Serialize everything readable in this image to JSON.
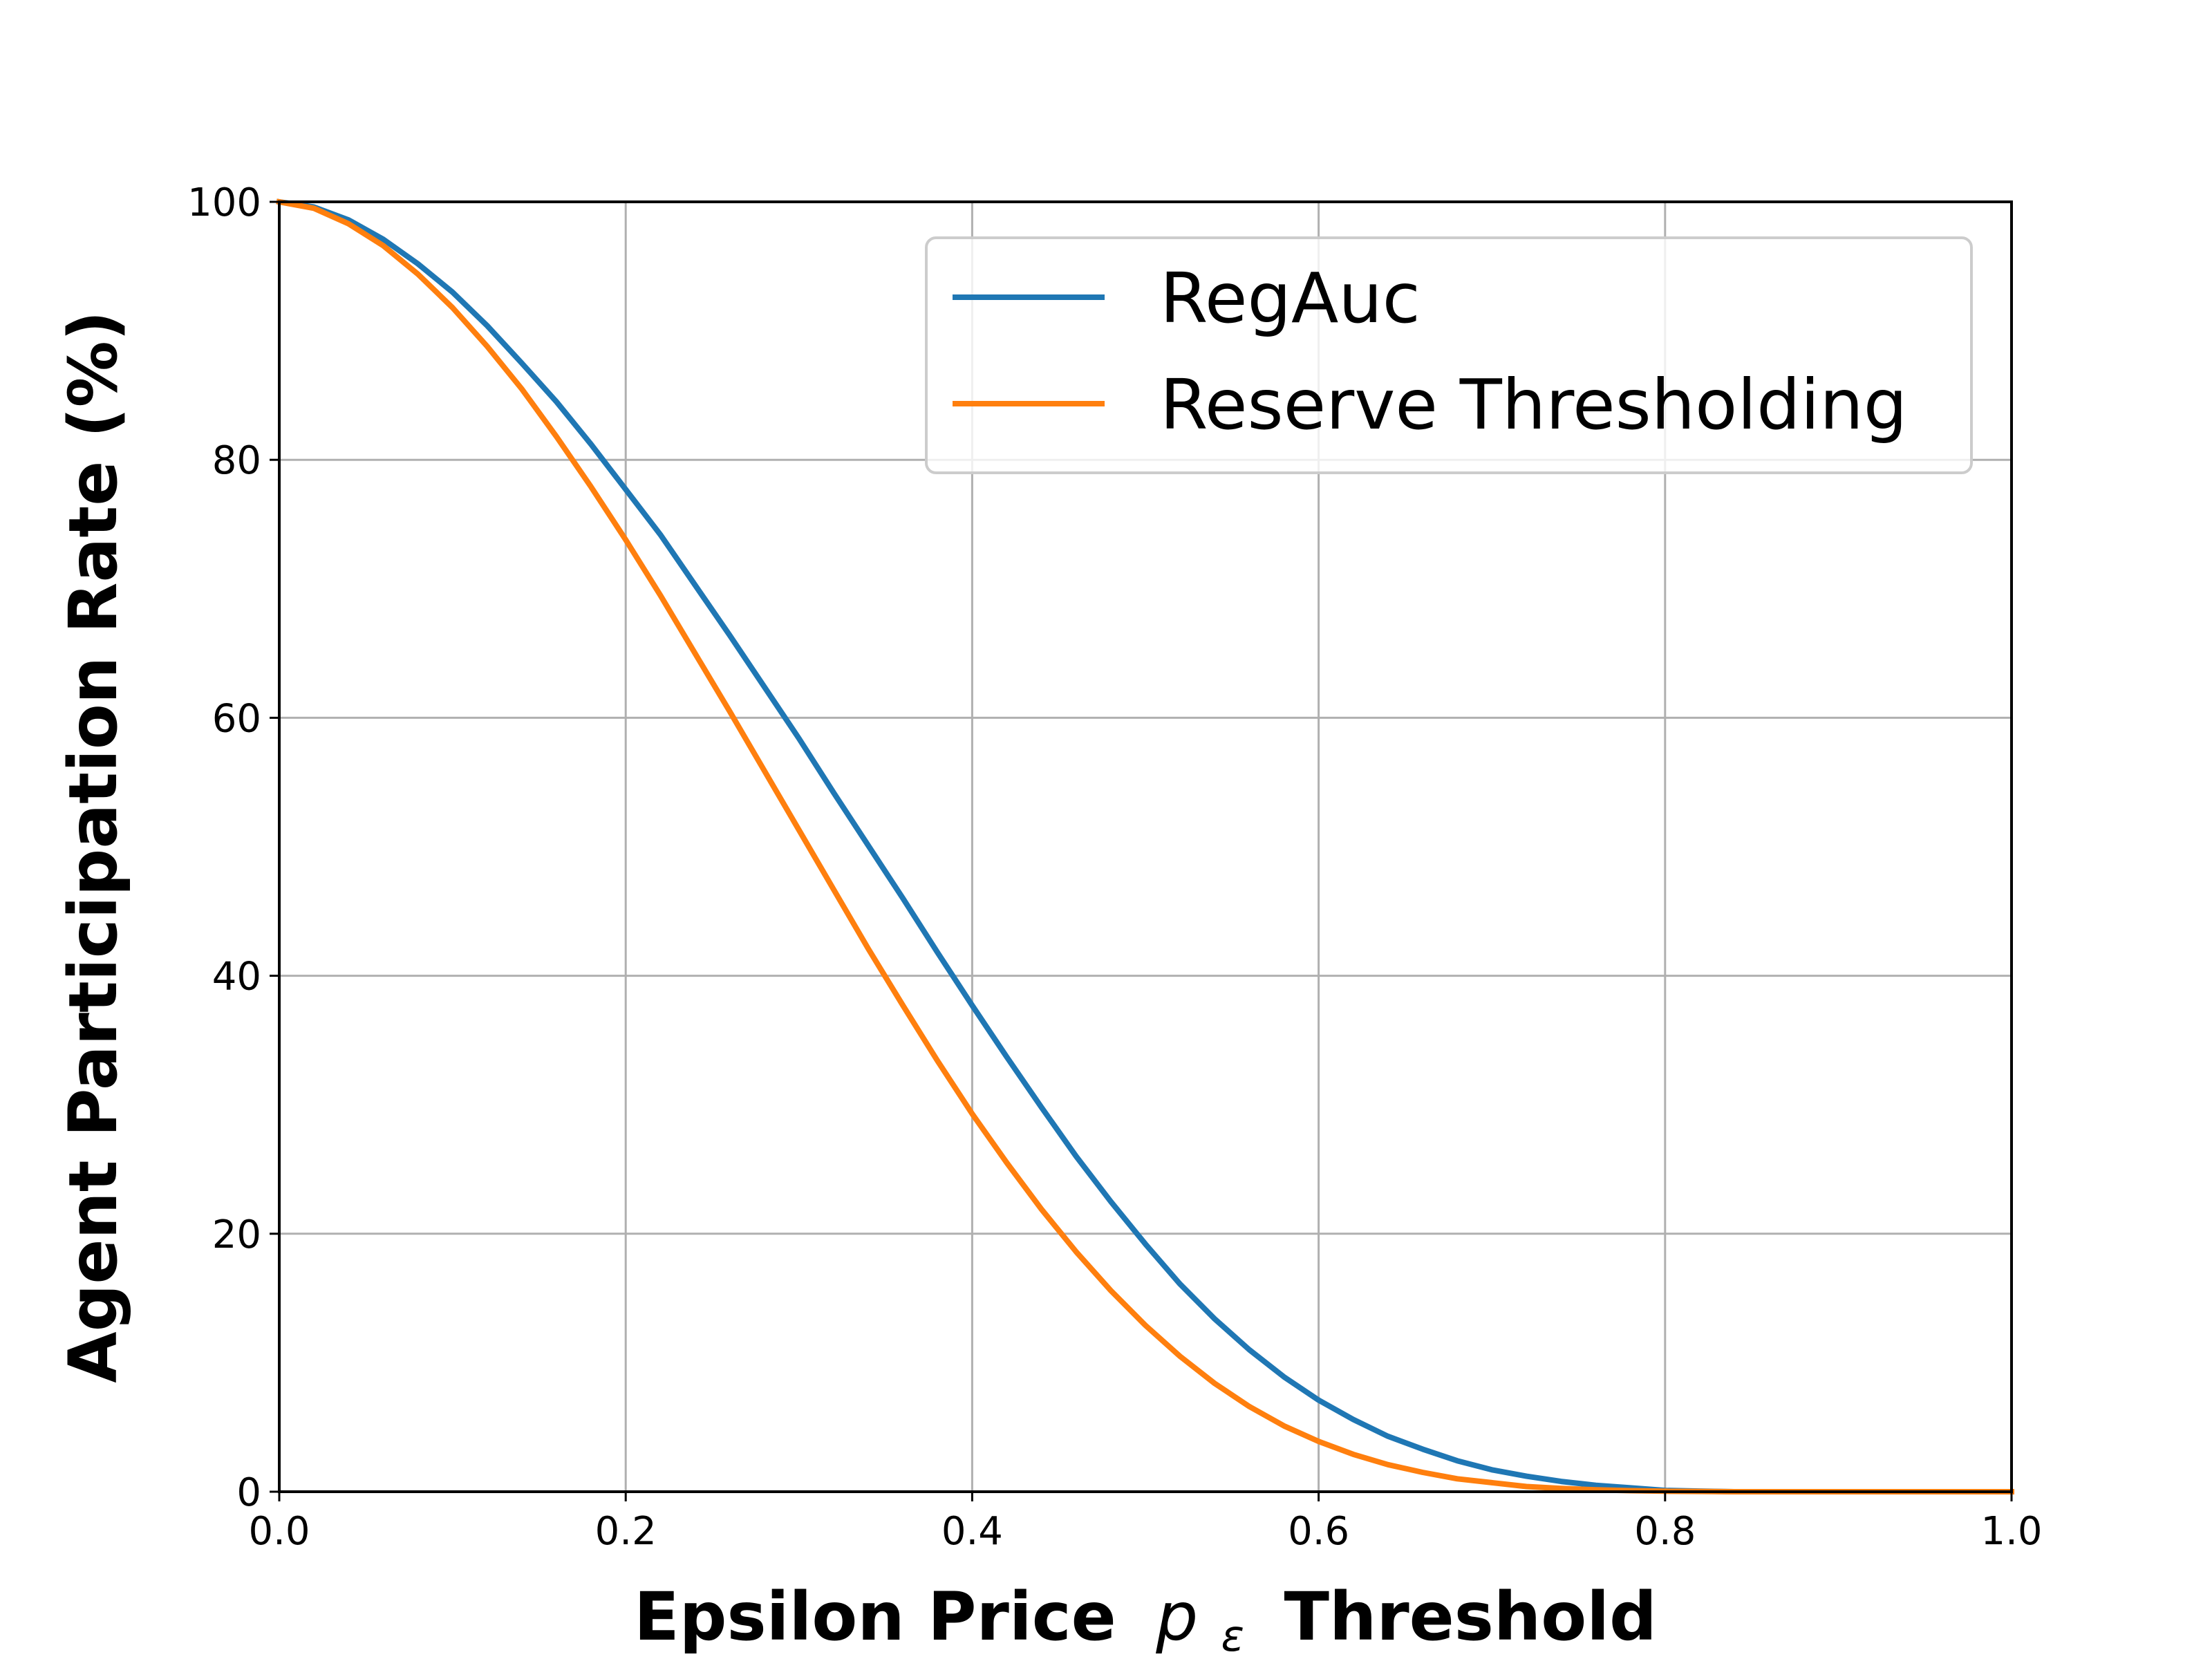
{
  "chart_data": {
    "type": "line",
    "title": "",
    "xlabel": {
      "main": "Epsilon Price",
      "symbol": "p",
      "symbol_subscript": "ε",
      "suffix": "Threshold"
    },
    "ylabel": "Agent Participation Rate (%)",
    "xlim": [
      0.0,
      1.0
    ],
    "ylim": [
      0,
      100
    ],
    "x_ticks": [
      "0.0",
      "0.2",
      "0.4",
      "0.6",
      "0.8",
      "1.0"
    ],
    "y_ticks": [
      "0",
      "20",
      "40",
      "60",
      "80",
      "100"
    ],
    "grid": true,
    "legend_position": "top-right",
    "series": [
      {
        "name": "RegAuc",
        "color": "#1f77b4",
        "x": [
          0.0,
          0.02,
          0.04,
          0.06,
          0.08,
          0.1,
          0.12,
          0.14,
          0.16,
          0.18,
          0.2,
          0.22,
          0.24,
          0.26,
          0.28,
          0.3,
          0.32,
          0.34,
          0.36,
          0.38,
          0.4,
          0.42,
          0.44,
          0.46,
          0.48,
          0.5,
          0.52,
          0.54,
          0.56,
          0.58,
          0.6,
          0.62,
          0.64,
          0.66,
          0.68,
          0.7,
          0.72,
          0.74,
          0.76,
          0.78,
          0.8,
          0.82,
          0.84,
          0.86,
          0.88,
          0.9,
          0.92,
          0.94,
          0.96,
          0.98,
          1.0
        ],
        "y": [
          100,
          99.6,
          98.6,
          97.1,
          95.2,
          93.0,
          90.4,
          87.5,
          84.5,
          81.2,
          77.7,
          74.2,
          70.3,
          66.4,
          62.4,
          58.4,
          54.2,
          50.1,
          46.0,
          41.8,
          37.7,
          33.7,
          29.8,
          26.0,
          22.5,
          19.2,
          16.1,
          13.4,
          11.0,
          8.9,
          7.1,
          5.6,
          4.3,
          3.3,
          2.4,
          1.7,
          1.2,
          0.8,
          0.5,
          0.3,
          0.1,
          0.05,
          0.0,
          0.0,
          0.0,
          0.0,
          0.0,
          0.0,
          0.0,
          0.0,
          0.0
        ]
      },
      {
        "name": "Reserve Thresholding",
        "color": "#ff7f0e",
        "x": [
          0.0,
          0.02,
          0.04,
          0.06,
          0.08,
          0.1,
          0.12,
          0.14,
          0.16,
          0.18,
          0.2,
          0.22,
          0.24,
          0.26,
          0.28,
          0.3,
          0.32,
          0.34,
          0.36,
          0.38,
          0.4,
          0.42,
          0.44,
          0.46,
          0.48,
          0.5,
          0.52,
          0.54,
          0.56,
          0.58,
          0.6,
          0.62,
          0.64,
          0.66,
          0.68,
          0.7,
          0.72,
          0.74,
          0.76,
          0.78,
          0.8,
          0.82,
          0.84,
          0.86,
          0.88,
          0.9,
          0.92,
          0.94,
          0.96,
          0.98,
          1.0
        ],
        "y": [
          100,
          99.5,
          98.3,
          96.6,
          94.4,
          91.8,
          88.8,
          85.5,
          81.8,
          77.9,
          73.8,
          69.5,
          65.0,
          60.5,
          55.9,
          51.3,
          46.7,
          42.1,
          37.7,
          33.4,
          29.3,
          25.5,
          21.9,
          18.6,
          15.6,
          12.9,
          10.5,
          8.4,
          6.6,
          5.1,
          3.9,
          2.9,
          2.1,
          1.5,
          1.0,
          0.7,
          0.4,
          0.25,
          0.15,
          0.08,
          0.04,
          0.02,
          0.0,
          0.0,
          0.0,
          0.0,
          0.0,
          0.0,
          0.0,
          0.0,
          0.0
        ]
      }
    ]
  }
}
